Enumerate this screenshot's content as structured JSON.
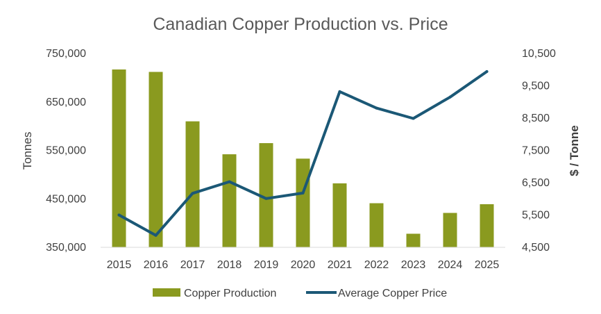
{
  "chart_data": {
    "type": "bar",
    "title": "Canadian Copper Production vs. Price",
    "categories": [
      "2015",
      "2016",
      "2017",
      "2018",
      "2019",
      "2020",
      "2021",
      "2022",
      "2023",
      "2024",
      "2025"
    ],
    "series": [
      {
        "name": "Copper Production",
        "type": "bar",
        "axis": "left",
        "color": "#8a9a1f",
        "values": [
          717000,
          712000,
          610000,
          542000,
          565000,
          533000,
          482000,
          441000,
          378000,
          421000,
          439000
        ]
      },
      {
        "name": "Average Copper Price",
        "type": "line",
        "axis": "right",
        "color": "#1b5876",
        "values": [
          5500,
          4870,
          6170,
          6530,
          6010,
          6180,
          9320,
          8810,
          8490,
          9150,
          9940
        ]
      }
    ],
    "y_left": {
      "label": "Tonnes",
      "lim": [
        350000,
        750000
      ],
      "ticks": [
        350000,
        450000,
        550000,
        650000,
        750000
      ],
      "tick_labels": [
        "350,000",
        "450,000",
        "550,000",
        "650,000",
        "750,000"
      ]
    },
    "y_right": {
      "label": "$ / Tonne",
      "lim": [
        4500,
        10500
      ],
      "ticks": [
        4500,
        5500,
        6500,
        7500,
        8500,
        9500,
        10500
      ],
      "tick_labels": [
        "4,500",
        "5,500",
        "6,500",
        "7,500",
        "8,500",
        "9,500",
        "10,500"
      ]
    },
    "grid": false,
    "legend": "bottom"
  }
}
